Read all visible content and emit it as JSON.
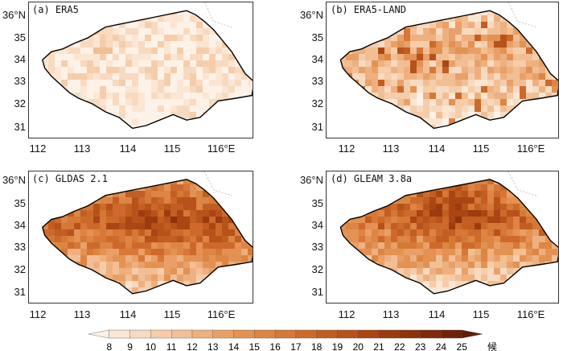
{
  "panels": [
    {
      "label": "(a) ERA5"
    },
    {
      "label": "(b) ERA5-LAND"
    },
    {
      "label": "(c) GLDAS 2.1"
    },
    {
      "label": "(d) GLEAM 3.8a"
    }
  ],
  "y_ticks": [
    "36°N",
    "35",
    "34",
    "33",
    "32",
    "31"
  ],
  "x_ticks": [
    "112",
    "113",
    "114",
    "115",
    "116°E"
  ],
  "colorbar": {
    "ticks": [
      "8",
      "9",
      "10",
      "11",
      "12",
      "13",
      "14",
      "15",
      "16",
      "17",
      "18",
      "19",
      "20",
      "21",
      "22",
      "23",
      "24",
      "25"
    ],
    "unit": "候",
    "colors": [
      "#fdf2e8",
      "#fbe6d3",
      "#f8dac0",
      "#f5cdab",
      "#f2bf95",
      "#efb07f",
      "#e9a068",
      "#e39253",
      "#dd8543",
      "#d67836",
      "#cd6a2b",
      "#c25e22",
      "#b7521b",
      "#aa4614",
      "#9c3b0f",
      "#8e320c",
      "#80290a",
      "#702208",
      "#611a06"
    ]
  },
  "panel_intensity": {
    "a": 0.1,
    "b": 0.3,
    "c": 0.55,
    "d": 0.48
  }
}
